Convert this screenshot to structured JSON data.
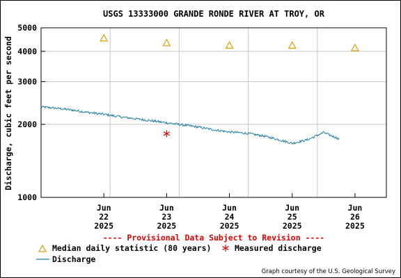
{
  "chart_data": {
    "type": "line",
    "title": "USGS 13333000 GRANDE RONDE RIVER AT TROY, OR",
    "ylabel": "Discharge, cubic feet per second",
    "yscale": "log",
    "ylim": [
      1000,
      5000
    ],
    "y_ticks": [
      1000,
      2000,
      3000,
      4000,
      5000
    ],
    "xlim": [
      "2025-06-21T12:00",
      "2025-06-27T00:00"
    ],
    "x_ticks": [
      {
        "at": "2025-06-22T12:00",
        "month": "Jun",
        "day": "22",
        "year": "2025"
      },
      {
        "at": "2025-06-23T12:00",
        "month": "Jun",
        "day": "23",
        "year": "2025"
      },
      {
        "at": "2025-06-24T12:00",
        "month": "Jun",
        "day": "24",
        "year": "2025"
      },
      {
        "at": "2025-06-25T12:00",
        "month": "Jun",
        "day": "25",
        "year": "2025"
      },
      {
        "at": "2025-06-26T12:00",
        "month": "Jun",
        "day": "26",
        "year": "2025"
      }
    ],
    "grid": true,
    "provisional_note": "---- Provisional Data Subject to Revision ----",
    "credit": "Graph courtesy of the U.S. Geological Survey",
    "colors": {
      "discharge": "#1f7fa0",
      "median": "#d9a000",
      "measured": "#e00000",
      "provisional": "#e00000",
      "grid": "#c8c8c8"
    },
    "series": [
      {
        "name": "Discharge",
        "type": "line",
        "x": [
          "2025-06-21T12:00",
          "2025-06-21T18:00",
          "2025-06-22T00:00",
          "2025-06-22T06:00",
          "2025-06-22T12:00",
          "2025-06-22T18:00",
          "2025-06-23T00:00",
          "2025-06-23T06:00",
          "2025-06-23T12:00",
          "2025-06-23T18:00",
          "2025-06-24T00:00",
          "2025-06-24T06:00",
          "2025-06-24T12:00",
          "2025-06-24T18:00",
          "2025-06-25T00:00",
          "2025-06-25T06:00",
          "2025-06-25T12:00",
          "2025-06-25T18:00",
          "2025-06-26T00:00",
          "2025-06-26T06:00"
        ],
        "values": [
          2360,
          2330,
          2290,
          2240,
          2200,
          2150,
          2110,
          2070,
          2030,
          1990,
          1950,
          1900,
          1860,
          1840,
          1800,
          1740,
          1670,
          1730,
          1850,
          1740
        ]
      },
      {
        "name": "Median daily statistic (80 years)",
        "type": "marker",
        "x": [
          "2025-06-22T12:00",
          "2025-06-23T12:00",
          "2025-06-24T12:00",
          "2025-06-25T12:00",
          "2025-06-26T12:00"
        ],
        "values": [
          4530,
          4330,
          4230,
          4230,
          4130
        ]
      },
      {
        "name": "Measured discharge",
        "type": "marker",
        "x": [
          "2025-06-23T12:00"
        ],
        "values": [
          1830
        ]
      }
    ]
  }
}
